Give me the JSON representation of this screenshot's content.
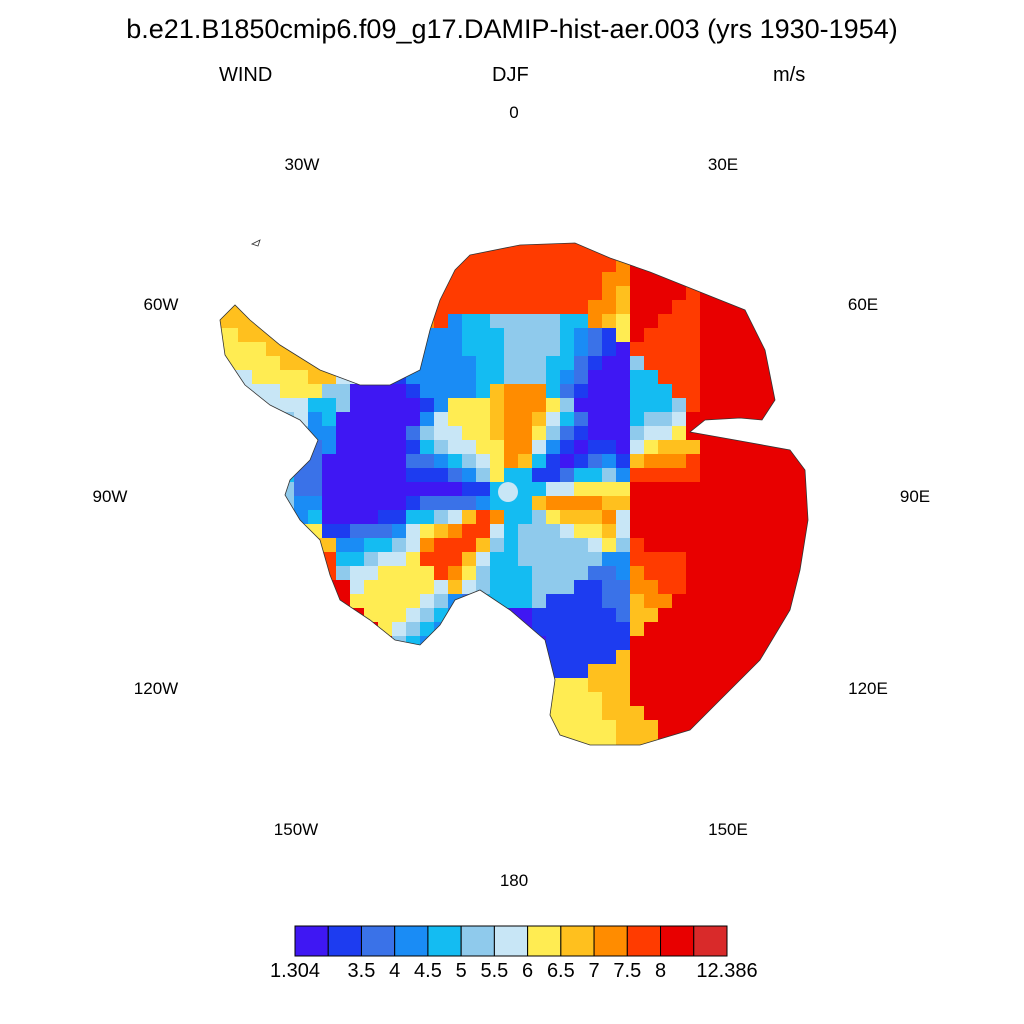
{
  "title": "b.e21.B1850cmip6.f09_g17.DAMIP-hist-aer.003 (yrs 1930-1954)",
  "left_string": "WIND",
  "center_string": "DJF",
  "right_string": "m/s",
  "longitude_labels": [
    "0",
    "30E",
    "60E",
    "90E",
    "120E",
    "150E",
    "180",
    "150W",
    "120W",
    "90W",
    "60W",
    "30W"
  ],
  "colorbar": {
    "labels": [
      "1.304",
      "3.5",
      "4",
      "4.5",
      "5",
      "5.5",
      "6",
      "6.5",
      "7",
      "7.5",
      "8",
      "12.386"
    ],
    "colors": [
      "#3f17f3",
      "#1d3cf0",
      "#3a72e8",
      "#1a8cf5",
      "#14bcf2",
      "#8fcaec",
      "#c8e6f6",
      "#ffec52",
      "#ffc01e",
      "#ff8c00",
      "#ff3b00",
      "#e80000",
      "#d92a2a"
    ]
  },
  "map_data": {
    "projection": "south-polar-stereographic",
    "field": "near-surface wind speed over Antarctica",
    "units": "m/s"
  }
}
